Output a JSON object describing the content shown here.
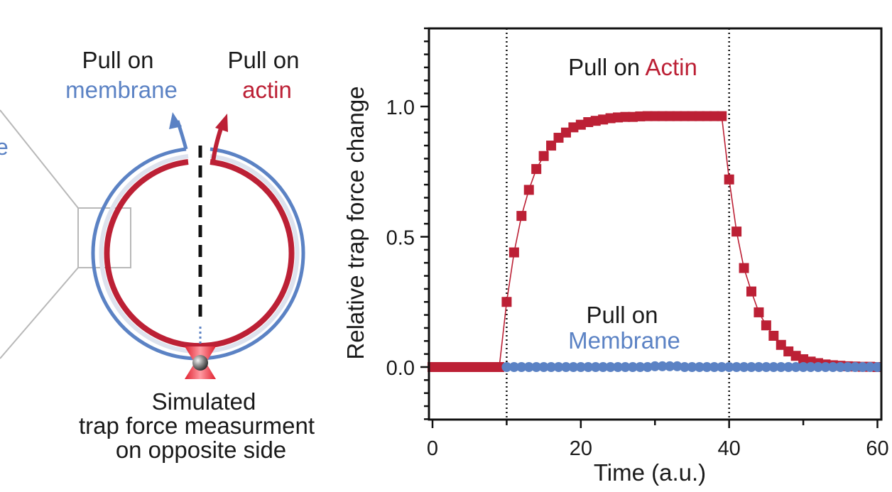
{
  "diagram": {
    "pull_membrane": {
      "line1": "Pull on",
      "line2": "membrane"
    },
    "pull_actin": {
      "line1": "Pull on",
      "line2": "actin"
    },
    "caption": [
      "Simulated",
      "trap force measurment",
      "on opposite side"
    ],
    "edge_letter": "e"
  },
  "colors": {
    "membrane": "#5b82c4",
    "actin": "#bc2035",
    "text": "#1a1a1a",
    "zoom_box": "#b8b8b8"
  },
  "chart_data": {
    "type": "scatter",
    "xlabel": "Time (a.u.)",
    "ylabel": "Relative trap force change",
    "xlim": [
      0,
      60
    ],
    "ylim": [
      -0.2,
      1.3
    ],
    "xticks": [
      "0",
      "20",
      "40",
      "60"
    ],
    "yticks": [
      "0.0",
      "0.5",
      "1.0"
    ],
    "vlines": [
      10,
      40
    ],
    "annotations": {
      "actin": {
        "prefix": "Pull on",
        "word": "Actin"
      },
      "membrane": {
        "line1": "Pull on",
        "line2": "Membrane"
      }
    },
    "series": [
      {
        "marker": "square",
        "color": "#bc2035",
        "x": [
          0,
          1,
          2,
          3,
          4,
          5,
          6,
          7,
          8,
          9,
          10,
          11,
          12,
          13,
          14,
          15,
          16,
          17,
          18,
          19,
          20,
          21,
          22,
          23,
          24,
          25,
          26,
          27,
          28,
          29,
          30,
          31,
          32,
          33,
          34,
          35,
          36,
          37,
          38,
          39,
          40,
          41,
          42,
          43,
          44,
          45,
          46,
          47,
          48,
          49,
          50,
          51,
          52,
          53,
          54,
          55,
          56,
          57,
          58,
          59,
          60
        ],
        "y": [
          0,
          0,
          0,
          0,
          0,
          0,
          0,
          0,
          0,
          0,
          0.25,
          0.44,
          0.58,
          0.68,
          0.76,
          0.81,
          0.85,
          0.88,
          0.9,
          0.92,
          0.93,
          0.94,
          0.945,
          0.95,
          0.955,
          0.958,
          0.96,
          0.96,
          0.962,
          0.963,
          0.963,
          0.963,
          0.963,
          0.963,
          0.963,
          0.963,
          0.963,
          0.963,
          0.963,
          0.963,
          0.72,
          0.52,
          0.38,
          0.29,
          0.21,
          0.16,
          0.12,
          0.085,
          0.06,
          0.043,
          0.03,
          0.021,
          0.015,
          0.01,
          0.007,
          0.005,
          0.003,
          0.002,
          0.001,
          0.001,
          0.0
        ]
      },
      {
        "marker": "circle",
        "color": "#5b82c4",
        "x": [
          10,
          11,
          12,
          13,
          14,
          15,
          16,
          17,
          18,
          19,
          20,
          21,
          22,
          23,
          24,
          25,
          26,
          27,
          28,
          29,
          30,
          31,
          32,
          33,
          34,
          35,
          36,
          37,
          38,
          39,
          40,
          41,
          42,
          43,
          44,
          45,
          46,
          47,
          48,
          49,
          50,
          51,
          52,
          53,
          54,
          55,
          56,
          57,
          58,
          59,
          60
        ],
        "y": [
          0,
          0,
          0,
          0,
          0,
          0,
          0,
          0,
          0,
          0,
          0,
          0,
          0,
          0,
          0,
          0,
          0,
          0,
          0,
          0,
          0.003,
          0.003,
          0.003,
          0.003,
          0,
          0,
          0,
          0,
          0,
          0,
          0,
          0,
          0,
          0,
          0,
          0,
          0,
          0,
          0,
          0,
          0,
          0,
          0,
          0,
          0,
          0,
          0,
          0,
          0,
          0,
          0
        ]
      }
    ]
  }
}
